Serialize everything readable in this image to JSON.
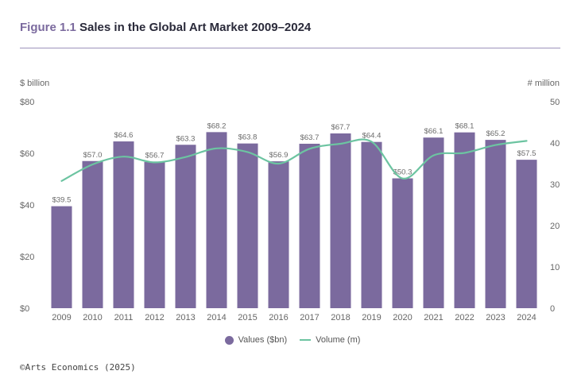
{
  "header": {
    "figure_label": "Figure 1.1",
    "title": "Sales in the Global Art Market 2009–2024"
  },
  "colors": {
    "bar": "#7b6a9e",
    "line": "#6cc4a1",
    "figure_label": "#7b6a9e",
    "rule": "#9d93bb"
  },
  "chart_data": {
    "type": "bar",
    "title": "Sales in the Global Art Market 2009–2024",
    "categories": [
      "2009",
      "2010",
      "2011",
      "2012",
      "2013",
      "2014",
      "2015",
      "2016",
      "2017",
      "2018",
      "2019",
      "2020",
      "2021",
      "2022",
      "2023",
      "2024"
    ],
    "series": [
      {
        "name": "Values ($bn)",
        "type": "bar",
        "axis": "left",
        "values": [
          39.5,
          57.0,
          64.6,
          56.7,
          63.3,
          68.2,
          63.8,
          56.9,
          63.7,
          67.7,
          64.4,
          50.3,
          66.1,
          68.1,
          65.2,
          57.5
        ],
        "labels": [
          "$39.5",
          "$57.0",
          "$64.6",
          "$56.7",
          "$63.3",
          "$68.2",
          "$63.8",
          "$56.9",
          "$63.7",
          "$67.7",
          "$64.4",
          "$50.3",
          "$66.1",
          "$68.1",
          "$65.2",
          "$57.5"
        ]
      },
      {
        "name": "Volume (m)",
        "type": "line",
        "axis": "right",
        "values": [
          30.8,
          34.8,
          36.7,
          35.3,
          36.6,
          38.7,
          37.8,
          35.0,
          38.6,
          39.8,
          40.3,
          31.4,
          37.0,
          37.6,
          39.5,
          40.5
        ]
      }
    ],
    "left_axis": {
      "label": "$ billion",
      "ylim": [
        0,
        80
      ],
      "ticks": [
        0,
        20,
        40,
        60,
        80
      ],
      "tick_labels": [
        "$0",
        "$20",
        "$40",
        "$60",
        "$80"
      ]
    },
    "right_axis": {
      "label": "# million",
      "ylim": [
        0,
        50
      ],
      "ticks": [
        0,
        10,
        20,
        30,
        40,
        50
      ],
      "tick_labels": [
        "0",
        "10",
        "20",
        "30",
        "40",
        "50"
      ]
    },
    "grid": false,
    "legend": {
      "position": "bottom-center",
      "items": [
        "Values ($bn)",
        "Volume (m)"
      ]
    }
  },
  "source": "©Arts Economics (2025)"
}
